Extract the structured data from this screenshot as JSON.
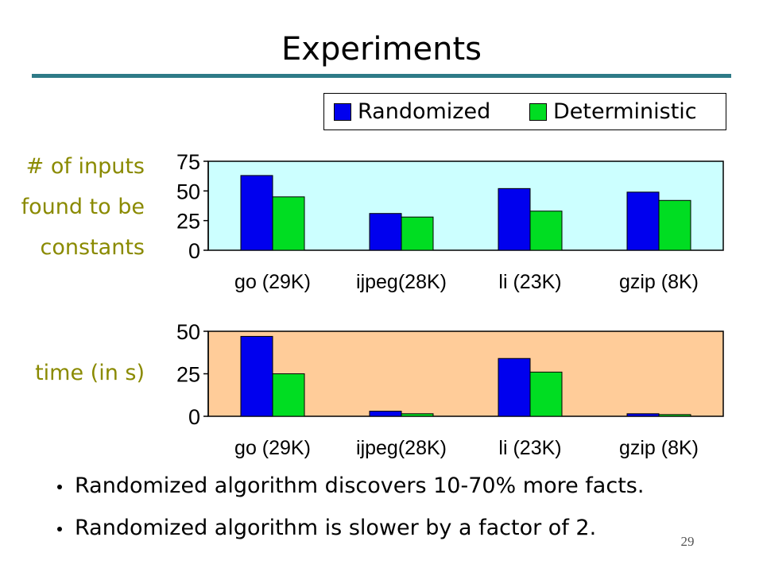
{
  "slide": {
    "title": "Experiments",
    "page_number": "29"
  },
  "legend": {
    "items": [
      {
        "label": "Randomized",
        "color": "#0000ee"
      },
      {
        "label": "Deterministic",
        "color": "#00dd22"
      }
    ]
  },
  "chart_labels": {
    "chart1": "# of inputs found to be constants",
    "chart1_lines": [
      "# of inputs",
      "found to be",
      "constants"
    ],
    "chart2": "time (in s)"
  },
  "bullets": [
    "Randomized algorithm discovers 10-70% more facts.",
    "Randomized algorithm is slower by a factor of 2."
  ],
  "chart_data": [
    {
      "type": "bar",
      "ylabel": "# of inputs found to be constants",
      "categories": [
        "go (29K)",
        "ijpeg(28K)",
        "li (23K)",
        "gzip (8K)"
      ],
      "series": [
        {
          "name": "Randomized",
          "values": [
            63,
            31,
            52,
            49
          ],
          "color": "#0000ee"
        },
        {
          "name": "Deterministic",
          "values": [
            45,
            28,
            33,
            42
          ],
          "color": "#00dd22"
        }
      ],
      "ylim": [
        0,
        75
      ],
      "yticks": [
        0,
        25,
        50,
        75
      ],
      "plot_background": "#ccffff",
      "legend": "top-right"
    },
    {
      "type": "bar",
      "ylabel": "time (in s)",
      "categories": [
        "go (29K)",
        "ijpeg(28K)",
        "li (23K)",
        "gzip (8K)"
      ],
      "series": [
        {
          "name": "Randomized",
          "values": [
            47,
            3,
            34,
            1.5
          ],
          "color": "#0000ee"
        },
        {
          "name": "Deterministic",
          "values": [
            25,
            1.5,
            26,
            1
          ],
          "color": "#00dd22"
        }
      ],
      "ylim": [
        0,
        50
      ],
      "yticks": [
        0,
        25,
        50
      ],
      "plot_background": "#ffcc99"
    }
  ]
}
